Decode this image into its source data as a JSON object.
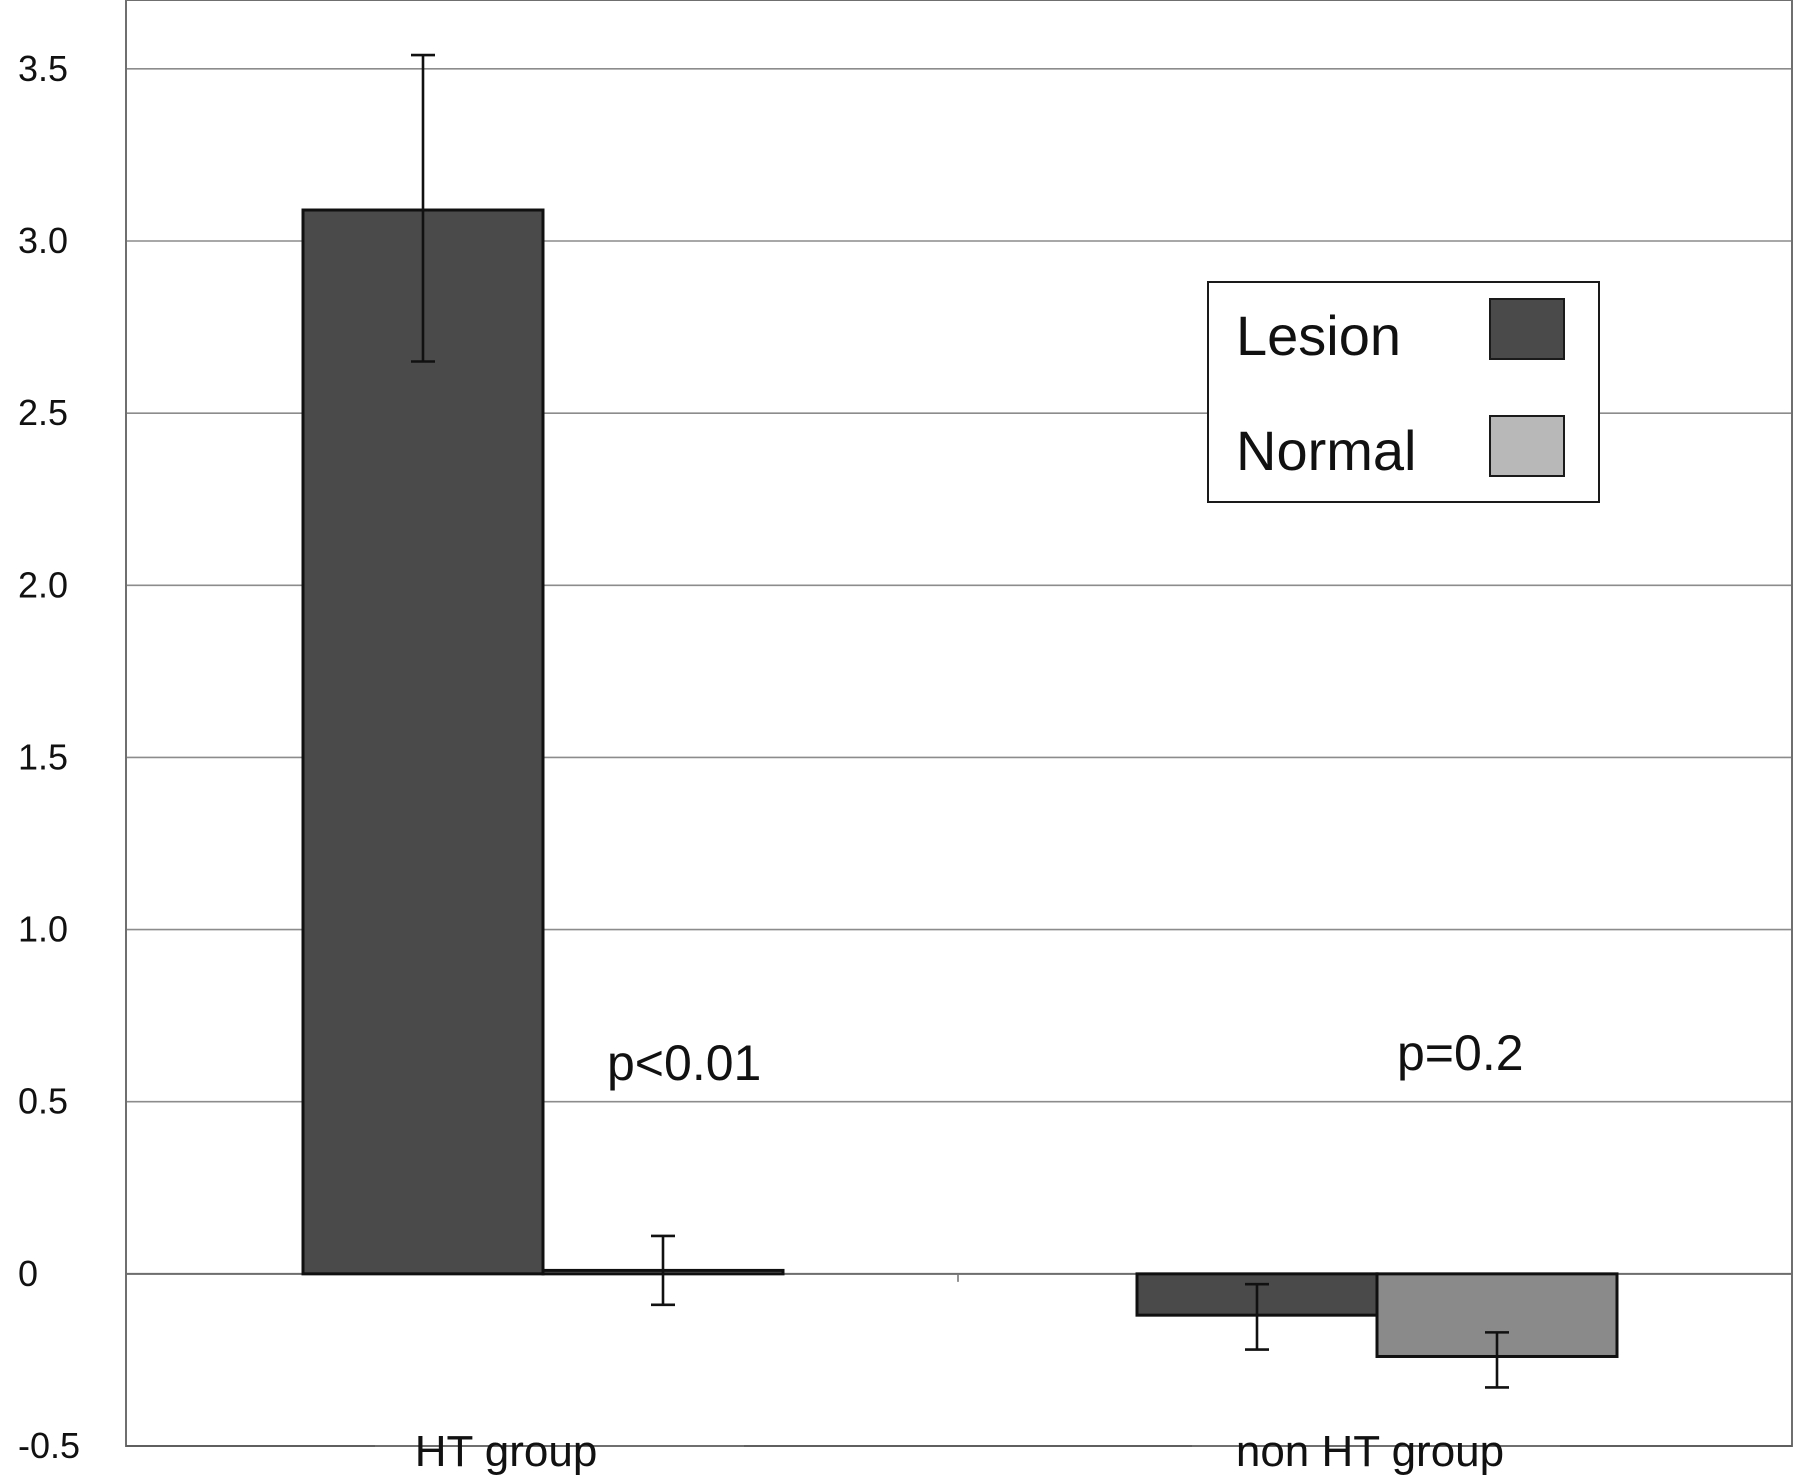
{
  "chart_data": {
    "type": "bar",
    "title": "",
    "xlabel": "",
    "ylabel": "",
    "categories": [
      "HT group",
      "non HT group"
    ],
    "series": [
      {
        "name": "Lesion",
        "color": "#4a4a4a",
        "values": [
          3.09,
          -0.12
        ],
        "error": [
          [
            2.65,
            3.54
          ],
          [
            -0.22,
            -0.03
          ]
        ]
      },
      {
        "name": "Normal",
        "color": "#8a8a8a",
        "legend_color": "#b8b8b8",
        "values": [
          0.01,
          -0.24
        ],
        "error": [
          [
            -0.09,
            0.11
          ],
          [
            -0.33,
            -0.17
          ]
        ]
      }
    ],
    "y_ticks": [
      "-0.5",
      "0",
      "0.5",
      "1.0",
      "1.5",
      "2.0",
      "2.5",
      "3.0",
      "3.5"
    ],
    "ylim": [
      -0.5,
      3.7
    ],
    "grid": true,
    "legend": {
      "position": "top-right",
      "items": [
        "Lesion",
        "Normal"
      ]
    },
    "annotations": [
      {
        "text": "p<0.01",
        "category": 0
      },
      {
        "text": "p=0.2",
        "category": 1
      }
    ]
  }
}
